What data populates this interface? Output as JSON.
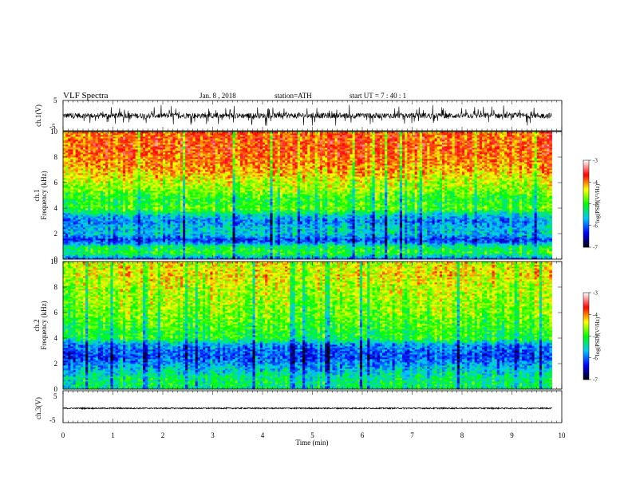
{
  "header": {
    "title": "VLF  Spectra",
    "date": "Jan.  8  , 2018",
    "station": "station=ATH",
    "start": "start  UT  =   7  : 40 : 1"
  },
  "chart_data": [
    {
      "type": "line",
      "name": "ch1-waveform",
      "ylabel": "ch.1(V)",
      "ylim": [
        -5,
        5
      ],
      "yticks": [
        "5",
        "-5"
      ],
      "xlim": [
        0,
        10
      ],
      "series_color": "#000000",
      "x_end": 9.8,
      "typical_amplitude": 1.5,
      "mean": 0
    },
    {
      "type": "heatmap",
      "name": "ch1-spectrogram",
      "ylabel_lines": [
        "ch.1",
        "Frequency  (kHz)"
      ],
      "ylim": [
        0,
        10
      ],
      "yticks": [
        "0",
        "2",
        "4",
        "6",
        "8",
        "10"
      ],
      "xlim": [
        0,
        10
      ],
      "x_end": 9.8,
      "colorbar": {
        "label": "log(PSD)(V²/Hz)",
        "range": [
          -7,
          -3
        ],
        "ticks": [
          "-3",
          "-4",
          "-5",
          "-6",
          "-7"
        ]
      },
      "typical_log_psd_by_frequency_khz": [
        {
          "f": 0.0,
          "v": -6.0
        },
        {
          "f": 0.5,
          "v": -5.0
        },
        {
          "f": 1.0,
          "v": -5.2
        },
        {
          "f": 1.5,
          "v": -6.2
        },
        {
          "f": 2.0,
          "v": -5.6
        },
        {
          "f": 2.5,
          "v": -5.6
        },
        {
          "f": 3.0,
          "v": -5.9
        },
        {
          "f": 3.5,
          "v": -5.5
        },
        {
          "f": 4.0,
          "v": -4.8
        },
        {
          "f": 4.5,
          "v": -5.0
        },
        {
          "f": 5.0,
          "v": -4.9
        },
        {
          "f": 5.5,
          "v": -4.6
        },
        {
          "f": 6.0,
          "v": -4.5
        },
        {
          "f": 7.0,
          "v": -4.1
        },
        {
          "f": 8.0,
          "v": -3.9
        },
        {
          "f": 9.0,
          "v": -3.8
        },
        {
          "f": 10.0,
          "v": -3.9
        }
      ]
    },
    {
      "type": "heatmap",
      "name": "ch2-spectrogram",
      "ylabel_lines": [
        "ch.2",
        "Frequency  (kHz)"
      ],
      "ylim": [
        0,
        10
      ],
      "yticks": [
        "0",
        "2",
        "4",
        "6",
        "8",
        "10"
      ],
      "xlim": [
        0,
        10
      ],
      "x_end": 9.8,
      "colorbar": {
        "label": "log(PSD)(V²/Hz)",
        "range": [
          -7,
          -3
        ],
        "ticks": [
          "-3",
          "-4",
          "-5",
          "-6",
          "-7"
        ]
      },
      "typical_log_psd_by_frequency_khz": [
        {
          "f": 0.0,
          "v": -5.3
        },
        {
          "f": 0.5,
          "v": -5.2
        },
        {
          "f": 1.0,
          "v": -5.3
        },
        {
          "f": 1.5,
          "v": -5.6
        },
        {
          "f": 2.0,
          "v": -5.8
        },
        {
          "f": 2.5,
          "v": -6.1
        },
        {
          "f": 3.0,
          "v": -6.0
        },
        {
          "f": 3.5,
          "v": -5.8
        },
        {
          "f": 4.0,
          "v": -5.0
        },
        {
          "f": 4.5,
          "v": -5.0
        },
        {
          "f": 5.0,
          "v": -4.9
        },
        {
          "f": 5.5,
          "v": -4.8
        },
        {
          "f": 6.0,
          "v": -4.7
        },
        {
          "f": 7.0,
          "v": -4.6
        },
        {
          "f": 8.0,
          "v": -4.5
        },
        {
          "f": 9.0,
          "v": -4.3
        },
        {
          "f": 10.0,
          "v": -4.4
        }
      ]
    },
    {
      "type": "line",
      "name": "ch3-waveform",
      "ylabel": "ch.3(V)",
      "ylim": [
        -5,
        5
      ],
      "yticks": [
        "5",
        "-5"
      ],
      "xlim": [
        0,
        10
      ],
      "series_color": "#000000",
      "x_end": 9.8,
      "typical_amplitude": 0.2,
      "mean": -0.5,
      "xlabel": "Time  (min)",
      "xticks": [
        "0",
        "1",
        "2",
        "3",
        "4",
        "5",
        "6",
        "7",
        "8",
        "9",
        "10"
      ]
    }
  ],
  "colormap": [
    "#000000",
    "#0000ff",
    "#00c8ff",
    "#00ff00",
    "#ffff00",
    "#ff0000",
    "#ffffff"
  ]
}
